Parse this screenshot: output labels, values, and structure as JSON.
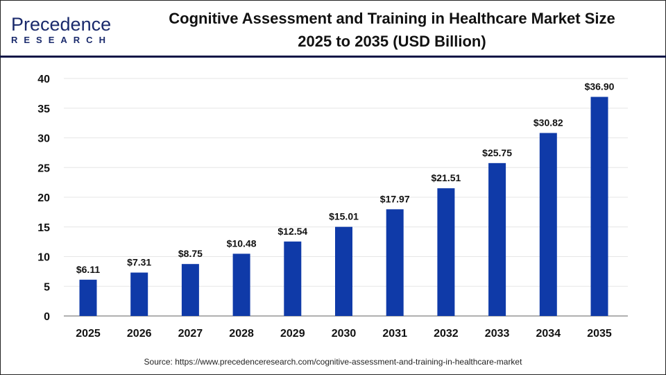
{
  "logo": {
    "line1": "Precedence",
    "line2": "RESEARCH"
  },
  "title": {
    "line1": "Cognitive Assessment and Training in Healthcare Market Size",
    "line2": "2025 to 2035 (USD Billion)"
  },
  "source": "Source: https://www.precedenceresearch.com/cognitive-assessment-and-training-in-healthcare-market",
  "chart_data": {
    "type": "bar",
    "title": "Cognitive Assessment and Training in Healthcare Market Size 2025 to 2035 (USD Billion)",
    "categories": [
      "2025",
      "2026",
      "2027",
      "2028",
      "2029",
      "2030",
      "2031",
      "2032",
      "2033",
      "2034",
      "2035"
    ],
    "values": [
      6.11,
      7.31,
      8.75,
      10.48,
      12.54,
      15.01,
      17.97,
      21.51,
      25.75,
      30.82,
      36.9
    ],
    "data_labels": [
      "$6.11",
      "$7.31",
      "$8.75",
      "$10.48",
      "$12.54",
      "$15.01",
      "$17.97",
      "$21.51",
      "$25.75",
      "$30.82",
      "$36.90"
    ],
    "yticks": [
      0,
      5,
      10,
      15,
      20,
      25,
      30,
      35,
      40
    ],
    "ylim": [
      0,
      40
    ],
    "grid": true,
    "bar_color": "#0f3aa8",
    "xlabel": "",
    "ylabel": ""
  }
}
